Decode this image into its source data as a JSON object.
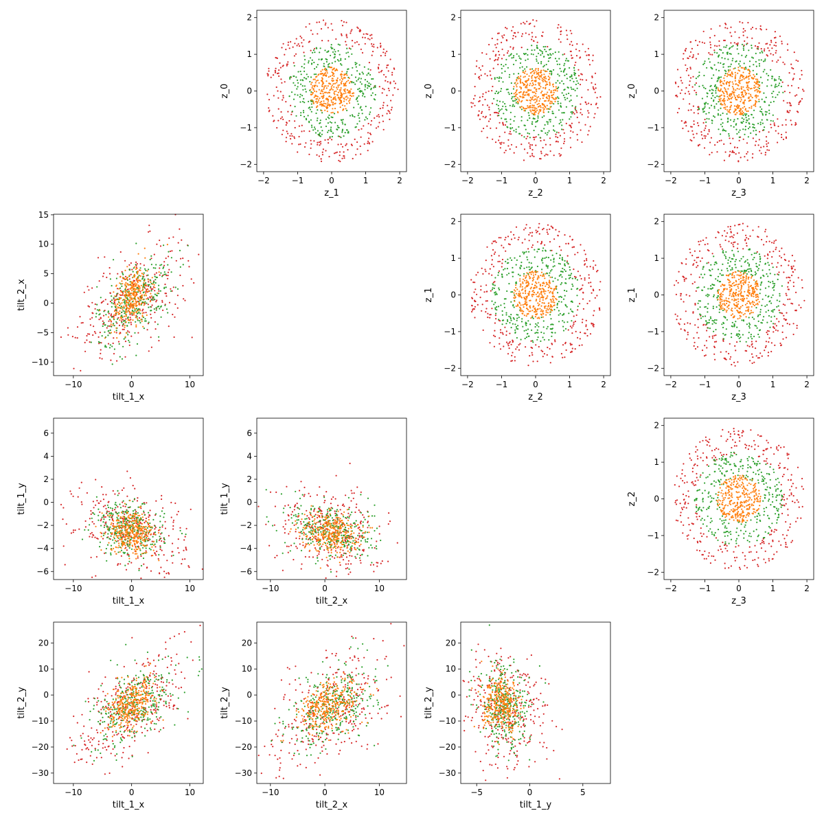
{
  "chart_data": [
    {
      "type": "scatter",
      "grid_row": 0,
      "grid_col": 1,
      "xlabel": "z_1",
      "ylabel": "z_0",
      "xlim": [
        -2.2,
        2.2
      ],
      "ylim": [
        -2.2,
        2.2
      ],
      "xticks": [
        -2,
        -1,
        0,
        1,
        2
      ],
      "yticks": [
        -2,
        -1,
        0,
        1,
        2
      ],
      "series": [
        {
          "color": "#d62728",
          "pattern": "ring",
          "cx": 0,
          "cy": 0,
          "r_inner": 1.25,
          "r_outer": 1.95
        },
        {
          "color": "#2ca02c",
          "pattern": "ring",
          "cx": 0,
          "cy": 0,
          "r_inner": 0.6,
          "r_outer": 1.3
        },
        {
          "color": "#ff7f0e",
          "pattern": "disc",
          "cx": 0,
          "cy": 0,
          "r_outer": 0.65
        }
      ]
    },
    {
      "type": "scatter",
      "grid_row": 0,
      "grid_col": 2,
      "xlabel": "z_2",
      "ylabel": "z_0",
      "xlim": [
        -2.2,
        2.2
      ],
      "ylim": [
        -2.2,
        2.2
      ],
      "xticks": [
        -2,
        -1,
        0,
        1,
        2
      ],
      "yticks": [
        -2,
        -1,
        0,
        1,
        2
      ],
      "series": [
        {
          "color": "#d62728",
          "pattern": "ring",
          "cx": 0,
          "cy": 0,
          "r_inner": 1.25,
          "r_outer": 1.95
        },
        {
          "color": "#2ca02c",
          "pattern": "ring",
          "cx": 0,
          "cy": 0,
          "r_inner": 0.6,
          "r_outer": 1.3
        },
        {
          "color": "#ff7f0e",
          "pattern": "disc",
          "cx": 0,
          "cy": 0,
          "r_outer": 0.65
        }
      ]
    },
    {
      "type": "scatter",
      "grid_row": 0,
      "grid_col": 3,
      "xlabel": "z_3",
      "ylabel": "z_0",
      "xlim": [
        -2.2,
        2.2
      ],
      "ylim": [
        -2.2,
        2.2
      ],
      "xticks": [
        -2,
        -1,
        0,
        1,
        2
      ],
      "yticks": [
        -2,
        -1,
        0,
        1,
        2
      ],
      "series": [
        {
          "color": "#d62728",
          "pattern": "ring",
          "cx": 0,
          "cy": 0,
          "r_inner": 1.25,
          "r_outer": 1.95
        },
        {
          "color": "#2ca02c",
          "pattern": "ring",
          "cx": 0,
          "cy": 0,
          "r_inner": 0.6,
          "r_outer": 1.3
        },
        {
          "color": "#ff7f0e",
          "pattern": "disc",
          "cx": 0,
          "cy": 0,
          "r_outer": 0.65
        }
      ]
    },
    {
      "type": "scatter",
      "grid_row": 1,
      "grid_col": 0,
      "xlabel": "tilt_1_x",
      "ylabel": "tilt_2_x",
      "xlim": [
        -13.4,
        12.3
      ],
      "ylim": [
        -12.3,
        15.1
      ],
      "xticks": [
        -10,
        0,
        10
      ],
      "yticks": [
        -10,
        -5,
        0,
        5,
        10,
        15
      ],
      "series": [
        {
          "color": "#d62728",
          "pattern": "gauss",
          "mx": 0,
          "my": 0.5,
          "sx": 5,
          "sy": 5,
          "rho": 0.55
        },
        {
          "color": "#2ca02c",
          "pattern": "gauss",
          "mx": 0.5,
          "my": 0.5,
          "sx": 3.2,
          "sy": 3.8,
          "rho": 0.5
        },
        {
          "color": "#ff7f0e",
          "pattern": "gauss",
          "mx": 0,
          "my": 1,
          "sx": 1.7,
          "sy": 2.6,
          "rho": 0.4
        }
      ]
    },
    {
      "type": "scatter",
      "grid_row": 1,
      "grid_col": 2,
      "xlabel": "z_2",
      "ylabel": "z_1",
      "xlim": [
        -2.2,
        2.2
      ],
      "ylim": [
        -2.2,
        2.2
      ],
      "xticks": [
        -2,
        -1,
        0,
        1,
        2
      ],
      "yticks": [
        -2,
        -1,
        0,
        1,
        2
      ],
      "series": [
        {
          "color": "#d62728",
          "pattern": "ring",
          "cx": 0,
          "cy": 0,
          "r_inner": 1.25,
          "r_outer": 1.95
        },
        {
          "color": "#2ca02c",
          "pattern": "ring",
          "cx": 0,
          "cy": 0,
          "r_inner": 0.6,
          "r_outer": 1.3
        },
        {
          "color": "#ff7f0e",
          "pattern": "disc",
          "cx": 0,
          "cy": 0,
          "r_outer": 0.65
        }
      ]
    },
    {
      "type": "scatter",
      "grid_row": 1,
      "grid_col": 3,
      "xlabel": "z_3",
      "ylabel": "z_1",
      "xlim": [
        -2.2,
        2.2
      ],
      "ylim": [
        -2.2,
        2.2
      ],
      "xticks": [
        -2,
        -1,
        0,
        1,
        2
      ],
      "yticks": [
        -2,
        -1,
        0,
        1,
        2
      ],
      "series": [
        {
          "color": "#d62728",
          "pattern": "ring",
          "cx": 0,
          "cy": 0,
          "r_inner": 1.25,
          "r_outer": 1.95
        },
        {
          "color": "#2ca02c",
          "pattern": "ring",
          "cx": 0,
          "cy": 0,
          "r_inner": 0.6,
          "r_outer": 1.3
        },
        {
          "color": "#ff7f0e",
          "pattern": "disc",
          "cx": 0,
          "cy": 0,
          "r_outer": 0.65
        }
      ]
    },
    {
      "type": "scatter",
      "grid_row": 2,
      "grid_col": 0,
      "xlabel": "tilt_1_x",
      "ylabel": "tilt_1_y",
      "xlim": [
        -13.4,
        12.3
      ],
      "ylim": [
        -6.7,
        7.3
      ],
      "xticks": [
        -10,
        0,
        10
      ],
      "yticks": [
        -6,
        -4,
        -2,
        0,
        2,
        4,
        6
      ],
      "series": [
        {
          "color": "#d62728",
          "pattern": "gauss",
          "mx": 0,
          "my": -2.3,
          "sx": 4.8,
          "sy": 1.9,
          "rho": -0.3
        },
        {
          "color": "#2ca02c",
          "pattern": "gauss",
          "mx": -0.5,
          "my": -2.4,
          "sx": 3,
          "sy": 1.2,
          "rho": -0.2
        },
        {
          "color": "#ff7f0e",
          "pattern": "gauss",
          "mx": 0,
          "my": -2.6,
          "sx": 2,
          "sy": 0.9,
          "rho": -0.1
        }
      ]
    },
    {
      "type": "scatter",
      "grid_row": 2,
      "grid_col": 1,
      "xlabel": "tilt_2_x",
      "ylabel": "tilt_1_y",
      "xlim": [
        -12.5,
        15
      ],
      "ylim": [
        -6.7,
        7.3
      ],
      "xticks": [
        -10,
        0,
        10
      ],
      "yticks": [
        -6,
        -4,
        -2,
        0,
        2,
        4,
        6
      ],
      "series": [
        {
          "color": "#d62728",
          "pattern": "gauss",
          "mx": 1,
          "my": -2.5,
          "sx": 5,
          "sy": 2,
          "rho": -0.3
        },
        {
          "color": "#2ca02c",
          "pattern": "gauss",
          "mx": 1.5,
          "my": -2.5,
          "sx": 3.8,
          "sy": 1.3,
          "rho": -0.2
        },
        {
          "color": "#ff7f0e",
          "pattern": "gauss",
          "mx": 1,
          "my": -2.6,
          "sx": 2.6,
          "sy": 0.9,
          "rho": -0.1
        }
      ]
    },
    {
      "type": "scatter",
      "grid_row": 2,
      "grid_col": 3,
      "xlabel": "z_3",
      "ylabel": "z_2",
      "xlim": [
        -2.2,
        2.2
      ],
      "ylim": [
        -2.2,
        2.2
      ],
      "xticks": [
        -2,
        -1,
        0,
        1,
        2
      ],
      "yticks": [
        -2,
        -1,
        0,
        1,
        2
      ],
      "series": [
        {
          "color": "#d62728",
          "pattern": "ring",
          "cx": 0,
          "cy": 0,
          "r_inner": 1.25,
          "r_outer": 1.95
        },
        {
          "color": "#2ca02c",
          "pattern": "ring",
          "cx": 0,
          "cy": 0,
          "r_inner": 0.6,
          "r_outer": 1.3
        },
        {
          "color": "#ff7f0e",
          "pattern": "disc",
          "cx": 0,
          "cy": 0,
          "r_outer": 0.65
        }
      ]
    },
    {
      "type": "scatter",
      "grid_row": 3,
      "grid_col": 0,
      "xlabel": "tilt_1_x",
      "ylabel": "tilt_2_y",
      "xlim": [
        -13.4,
        12.3
      ],
      "ylim": [
        -34,
        28
      ],
      "xticks": [
        -10,
        0,
        10
      ],
      "yticks": [
        -30,
        -20,
        -10,
        0,
        10,
        20
      ],
      "series": [
        {
          "color": "#d62728",
          "pattern": "gauss",
          "mx": 0,
          "my": -5,
          "sx": 5,
          "sy": 12,
          "rho": 0.6
        },
        {
          "color": "#2ca02c",
          "pattern": "gauss",
          "mx": 0.5,
          "my": -4,
          "sx": 3.5,
          "sy": 8,
          "rho": 0.55
        },
        {
          "color": "#ff7f0e",
          "pattern": "gauss",
          "mx": 0,
          "my": -4,
          "sx": 2,
          "sy": 5,
          "rho": 0.5
        }
      ]
    },
    {
      "type": "scatter",
      "grid_row": 3,
      "grid_col": 1,
      "xlabel": "tilt_2_x",
      "ylabel": "tilt_2_y",
      "xlim": [
        -12.5,
        15
      ],
      "ylim": [
        -34,
        28
      ],
      "xticks": [
        -10,
        0,
        10
      ],
      "yticks": [
        -30,
        -20,
        -10,
        0,
        10,
        20
      ],
      "series": [
        {
          "color": "#d62728",
          "pattern": "gauss",
          "mx": 1,
          "my": -5,
          "sx": 5.5,
          "sy": 12,
          "rho": 0.5
        },
        {
          "color": "#2ca02c",
          "pattern": "gauss",
          "mx": 1.5,
          "my": -4,
          "sx": 4,
          "sy": 8,
          "rho": 0.45
        },
        {
          "color": "#ff7f0e",
          "pattern": "gauss",
          "mx": 1,
          "my": -4,
          "sx": 2.8,
          "sy": 5,
          "rho": 0.4
        }
      ]
    },
    {
      "type": "scatter",
      "grid_row": 3,
      "grid_col": 2,
      "xlabel": "tilt_1_y",
      "ylabel": "tilt_2_y",
      "xlim": [
        -6.5,
        7.6
      ],
      "ylim": [
        -34,
        28
      ],
      "xticks": [
        -5,
        0,
        5
      ],
      "yticks": [
        -30,
        -20,
        -10,
        0,
        10,
        20
      ],
      "series": [
        {
          "color": "#d62728",
          "pattern": "gauss",
          "mx": -2.3,
          "my": -6,
          "sx": 2,
          "sy": 12,
          "rho": -0.2
        },
        {
          "color": "#2ca02c",
          "pattern": "gauss",
          "mx": -2.4,
          "my": -5,
          "sx": 1.2,
          "sy": 8,
          "rho": -0.15
        },
        {
          "color": "#ff7f0e",
          "pattern": "gauss",
          "mx": -2.6,
          "my": -4,
          "sx": 0.9,
          "sy": 5,
          "rho": -0.1
        }
      ]
    }
  ]
}
